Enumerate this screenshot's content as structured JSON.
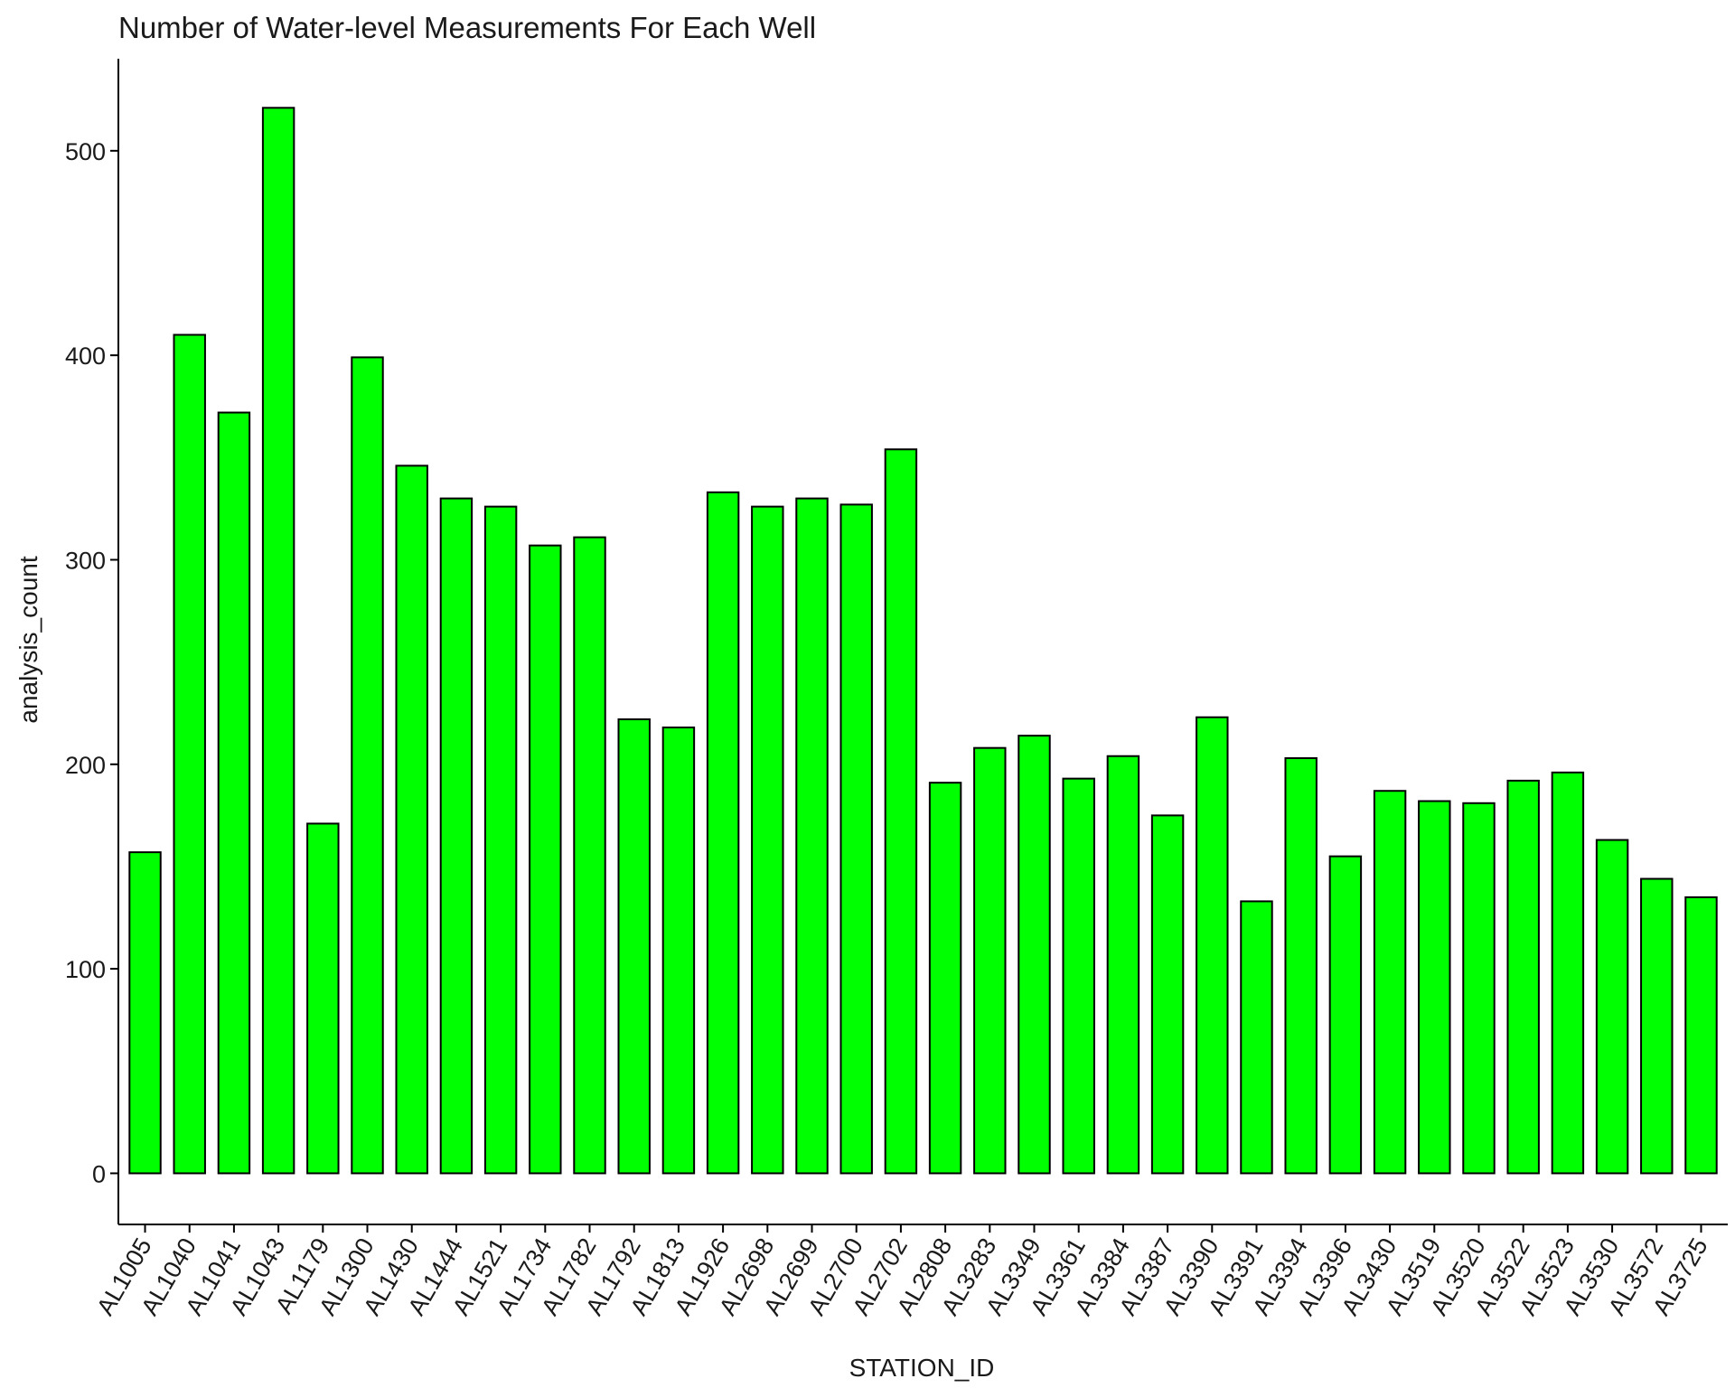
{
  "chart_data": {
    "type": "bar",
    "title": "Number of Water-level Measurements For Each Well",
    "xlabel": "STATION_ID",
    "ylabel": "analysis_count",
    "ylim": [
      -25,
      545
    ],
    "yticks": [
      0,
      100,
      200,
      300,
      400,
      500
    ],
    "grid": false,
    "legend": "none",
    "bar_fill": "#00ff00",
    "bar_stroke": "#000000",
    "categories": [
      "AL1005",
      "AL1040",
      "AL1041",
      "AL1043",
      "AL1179",
      "AL1300",
      "AL1430",
      "AL1444",
      "AL1521",
      "AL1734",
      "AL1782",
      "AL1792",
      "AL1813",
      "AL1926",
      "AL2698",
      "AL2699",
      "AL2700",
      "AL2702",
      "AL2808",
      "AL3283",
      "AL3349",
      "AL3361",
      "AL3384",
      "AL3387",
      "AL3390",
      "AL3391",
      "AL3394",
      "AL3396",
      "AL3430",
      "AL3519",
      "AL3520",
      "AL3522",
      "AL3523",
      "AL3530",
      "AL3572",
      "AL3725"
    ],
    "values": [
      157,
      410,
      372,
      521,
      171,
      399,
      346,
      330,
      326,
      307,
      311,
      222,
      218,
      333,
      326,
      330,
      327,
      354,
      191,
      208,
      214,
      193,
      204,
      175,
      223,
      133,
      203,
      155,
      187,
      182,
      181,
      192,
      196,
      163,
      144,
      135
    ]
  }
}
